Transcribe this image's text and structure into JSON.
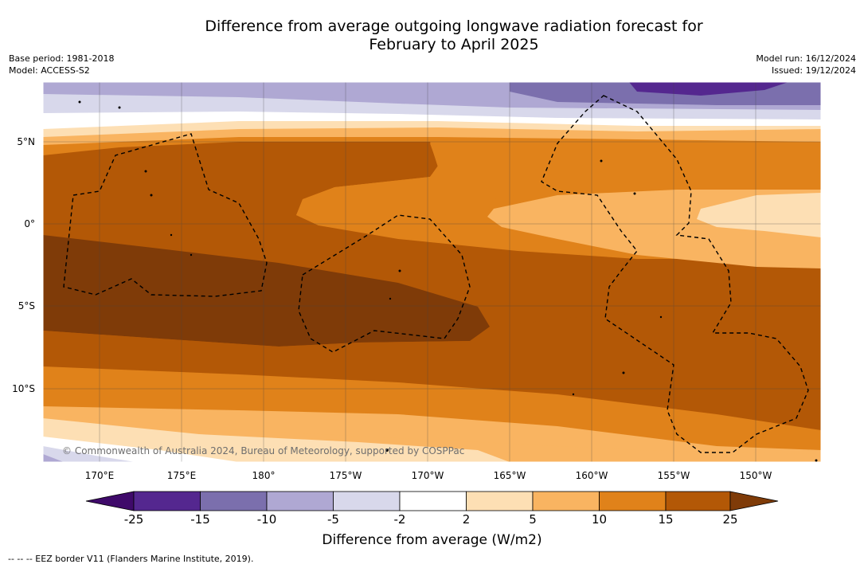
{
  "header": {
    "title_line1": "Difference from average outgoing longwave radiation forecast for",
    "title_line2": "February to April 2025",
    "base_period": "Base period: 1981-2018",
    "model": "Model: ACCESS-S2",
    "model_run": "Model run: 16/12/2024",
    "issued": "Issued: 19/12/2024"
  },
  "map": {
    "lat_labels": [
      "5°N",
      "0°",
      "5°S",
      "10°S"
    ],
    "lon_labels": [
      "170°E",
      "175°E",
      "180°",
      "175°W",
      "170°W",
      "165°W",
      "160°W",
      "155°W",
      "150°W"
    ],
    "watermark": "© Commonwealth of Australia 2024, Bureau of Meteorology, supported by COSPPac"
  },
  "legend": {
    "ticks": [
      "-25",
      "-15",
      "-10",
      "-5",
      "-2",
      "2",
      "5",
      "10",
      "15",
      "25"
    ],
    "colors": [
      "#3f0a6a",
      "#54278f",
      "#7b6fad",
      "#afa8d3",
      "#d8d8eb",
      "#ffffff",
      "#fddfb4",
      "#f9b461",
      "#e0821a",
      "#b35806",
      "#7f3b08"
    ],
    "title": "Difference from average (W/m2)"
  },
  "footnote": "--  --  -- EEZ border V11 (Flanders Marine Institute, 2019)."
}
